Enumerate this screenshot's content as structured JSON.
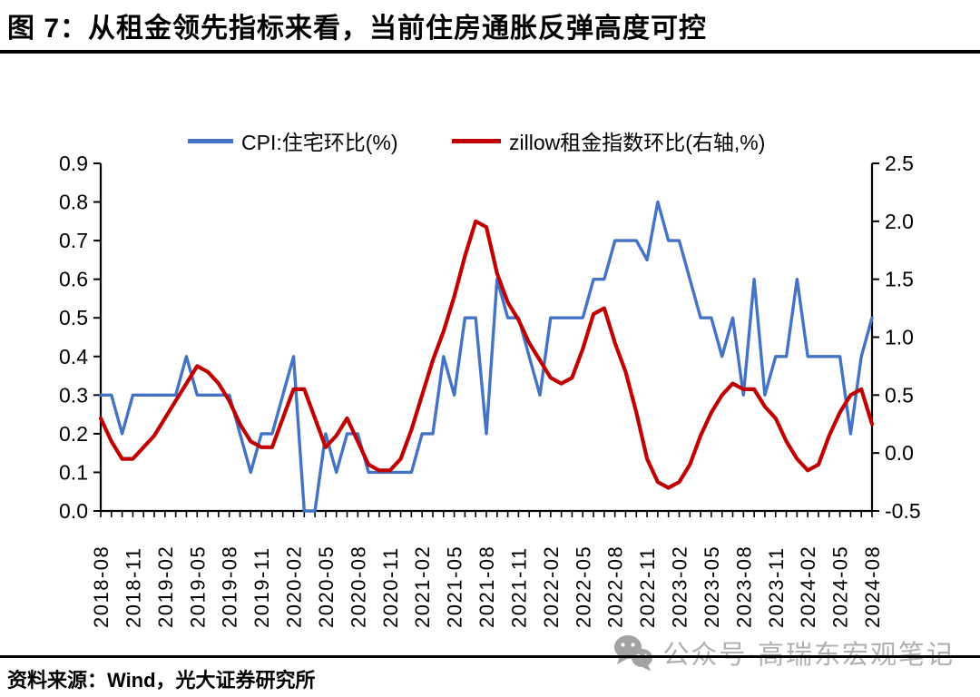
{
  "title": "图 7：从租金领先指标来看，当前住房通胀反弹高度可控",
  "source": {
    "text": "资料来源：Wind，光大证券研究所"
  },
  "watermark": {
    "text": "公众号·高瑞东宏观笔记",
    "icon": "wechat-icon",
    "color": "#b0b0b0"
  },
  "legend": [
    {
      "label": "CPI:住宅环比(%)",
      "color": "#4472C4"
    },
    {
      "label": "zillow租金指数环比(右轴,%)",
      "color": "#C00000"
    }
  ],
  "chart_data": {
    "type": "line",
    "frequency": "monthly",
    "x_start": "2018-08",
    "x_end": "2024-08",
    "x_tick_labels": [
      "2018-08",
      "2018-11",
      "2019-02",
      "2019-05",
      "2019-08",
      "2019-11",
      "2020-02",
      "2020-05",
      "2020-08",
      "2020-11",
      "2021-02",
      "2021-05",
      "2021-08",
      "2021-11",
      "2022-02",
      "2022-05",
      "2022-08",
      "2022-11",
      "2023-02",
      "2023-05",
      "2023-08",
      "2023-11",
      "2024-02",
      "2024-05",
      "2024-08"
    ],
    "left_axis": {
      "ylim": [
        0.0,
        0.9
      ],
      "tick_labels": [
        "0.0",
        "0.1",
        "0.2",
        "0.3",
        "0.4",
        "0.5",
        "0.6",
        "0.7",
        "0.8",
        "0.9"
      ]
    },
    "right_axis": {
      "ylim": [
        -0.5,
        2.5
      ],
      "tick_labels": [
        "-0.5",
        "0.0",
        "0.5",
        "1.0",
        "1.5",
        "2.0",
        "2.5"
      ]
    },
    "grid": false,
    "legend_position": "top",
    "series": [
      {
        "name": "CPI:住宅环比(%)",
        "axis": "left",
        "color": "#4472C4",
        "width": 3.4,
        "values": [
          0.3,
          0.3,
          0.2,
          0.3,
          0.3,
          0.3,
          0.3,
          0.3,
          0.4,
          0.3,
          0.3,
          0.3,
          0.3,
          0.2,
          0.1,
          0.2,
          0.2,
          0.3,
          0.4,
          0.0,
          0.0,
          0.2,
          0.1,
          0.2,
          0.2,
          0.1,
          0.1,
          0.1,
          0.1,
          0.1,
          0.2,
          0.2,
          0.4,
          0.3,
          0.5,
          0.5,
          0.2,
          0.6,
          0.5,
          0.5,
          0.4,
          0.3,
          0.5,
          0.5,
          0.5,
          0.5,
          0.6,
          0.6,
          0.7,
          0.7,
          0.7,
          0.65,
          0.8,
          0.7,
          0.7,
          0.6,
          0.5,
          0.5,
          0.4,
          0.5,
          0.3,
          0.6,
          0.3,
          0.4,
          0.4,
          0.6,
          0.4,
          0.4,
          0.4,
          0.4,
          0.2,
          0.4,
          0.5
        ]
      },
      {
        "name": "zillow租金指数环比(右轴,%)",
        "axis": "right",
        "color": "#C00000",
        "width": 4.2,
        "values": [
          0.3,
          0.1,
          -0.05,
          -0.05,
          0.05,
          0.15,
          0.3,
          0.45,
          0.6,
          0.75,
          0.7,
          0.6,
          0.45,
          0.25,
          0.1,
          0.05,
          0.05,
          0.3,
          0.55,
          0.55,
          0.3,
          0.05,
          0.15,
          0.3,
          0.1,
          -0.1,
          -0.15,
          -0.15,
          -0.05,
          0.2,
          0.5,
          0.8,
          1.05,
          1.35,
          1.7,
          2.0,
          1.95,
          1.55,
          1.3,
          1.15,
          0.95,
          0.8,
          0.65,
          0.6,
          0.65,
          0.9,
          1.2,
          1.25,
          0.95,
          0.7,
          0.35,
          -0.05,
          -0.25,
          -0.3,
          -0.25,
          -0.1,
          0.15,
          0.35,
          0.5,
          0.6,
          0.55,
          0.55,
          0.4,
          0.3,
          0.1,
          -0.05,
          -0.15,
          -0.1,
          0.15,
          0.35,
          0.5,
          0.55,
          0.25
        ]
      }
    ]
  }
}
